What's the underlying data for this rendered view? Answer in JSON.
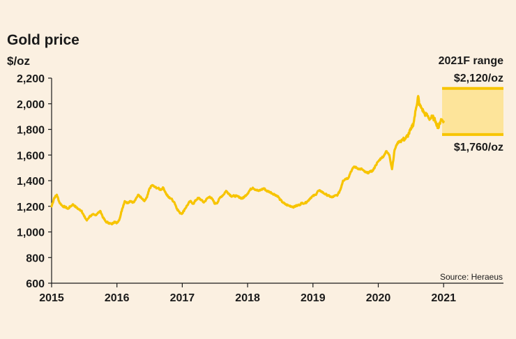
{
  "chart_data": {
    "type": "line",
    "title": "Gold price",
    "ylabel": "$/oz",
    "xlabel": "",
    "ylim": [
      600,
      2200
    ],
    "xlim": [
      2015,
      2022
    ],
    "y_ticks": [
      "600",
      "800",
      "1,000",
      "1,200",
      "1,400",
      "1,600",
      "1,800",
      "2,000",
      "2,200"
    ],
    "x_ticks": [
      "2015",
      "2016",
      "2017",
      "2018",
      "2019",
      "2020",
      "2021"
    ],
    "grid": false,
    "source": "Source: Heraeus",
    "colors": {
      "line": "#f7c400",
      "range_fill": "#fde49a",
      "range_line": "#f7c400",
      "axis": "#1a1a1a",
      "background": "#fbf0e1"
    },
    "series": [
      {
        "x": [
          2015.0,
          2015.04,
          2015.08,
          2015.12,
          2015.17,
          2015.21,
          2015.25,
          2015.29,
          2015.33,
          2015.38,
          2015.42,
          2015.46,
          2015.5,
          2015.54,
          2015.58,
          2015.63,
          2015.67,
          2015.71,
          2015.75,
          2015.79,
          2015.83,
          2015.88,
          2015.92,
          2015.96,
          2016.0,
          2016.04,
          2016.08,
          2016.12,
          2016.17,
          2016.21,
          2016.25,
          2016.29,
          2016.33,
          2016.38,
          2016.42,
          2016.46,
          2016.5,
          2016.54,
          2016.58,
          2016.63,
          2016.67,
          2016.71,
          2016.75,
          2016.79,
          2016.83,
          2016.88,
          2016.92,
          2016.96,
          2017.0,
          2017.04,
          2017.08,
          2017.12,
          2017.17,
          2017.21,
          2017.25,
          2017.29,
          2017.33,
          2017.38,
          2017.42,
          2017.46,
          2017.5,
          2017.54,
          2017.58,
          2017.63,
          2017.67,
          2017.71,
          2017.75,
          2017.79,
          2017.83,
          2017.88,
          2017.92,
          2017.96,
          2018.0,
          2018.04,
          2018.08,
          2018.12,
          2018.17,
          2018.21,
          2018.25,
          2018.29,
          2018.33,
          2018.38,
          2018.42,
          2018.46,
          2018.5,
          2018.54,
          2018.58,
          2018.63,
          2018.67,
          2018.71,
          2018.75,
          2018.79,
          2018.83,
          2018.88,
          2018.92,
          2018.96,
          2019.0,
          2019.04,
          2019.08,
          2019.12,
          2019.17,
          2019.21,
          2019.25,
          2019.29,
          2019.33,
          2019.38,
          2019.42,
          2019.46,
          2019.5,
          2019.54,
          2019.58,
          2019.63,
          2019.67,
          2019.71,
          2019.75,
          2019.79,
          2019.83,
          2019.88,
          2019.92,
          2019.96,
          2020.0,
          2020.04,
          2020.08,
          2020.12,
          2020.17,
          2020.21,
          2020.25,
          2020.29,
          2020.33,
          2020.38,
          2020.42,
          2020.46,
          2020.5,
          2020.54,
          2020.58,
          2020.61,
          2020.63,
          2020.67,
          2020.71,
          2020.75,
          2020.79,
          2020.83,
          2020.88,
          2020.92,
          2020.96,
          2021.0
        ],
        "y": [
          1200,
          1265,
          1290,
          1230,
          1200,
          1195,
          1180,
          1200,
          1215,
          1190,
          1175,
          1165,
          1120,
          1090,
          1120,
          1135,
          1130,
          1150,
          1160,
          1110,
          1080,
          1070,
          1060,
          1080,
          1070,
          1100,
          1180,
          1240,
          1225,
          1240,
          1230,
          1260,
          1290,
          1260,
          1240,
          1270,
          1340,
          1365,
          1350,
          1340,
          1330,
          1345,
          1300,
          1270,
          1260,
          1230,
          1180,
          1150,
          1145,
          1180,
          1210,
          1240,
          1220,
          1250,
          1265,
          1250,
          1230,
          1260,
          1275,
          1255,
          1220,
          1230,
          1270,
          1290,
          1320,
          1300,
          1280,
          1280,
          1280,
          1270,
          1260,
          1280,
          1300,
          1330,
          1345,
          1330,
          1320,
          1330,
          1340,
          1320,
          1315,
          1300,
          1290,
          1280,
          1250,
          1230,
          1215,
          1205,
          1200,
          1195,
          1205,
          1210,
          1225,
          1225,
          1240,
          1265,
          1280,
          1290,
          1320,
          1320,
          1300,
          1290,
          1280,
          1270,
          1280,
          1290,
          1330,
          1400,
          1415,
          1420,
          1470,
          1510,
          1500,
          1490,
          1490,
          1470,
          1460,
          1470,
          1480,
          1520,
          1550,
          1575,
          1590,
          1630,
          1600,
          1490,
          1640,
          1690,
          1710,
          1720,
          1730,
          1760,
          1800,
          1850,
          1970,
          2060,
          1990,
          1960,
          1920,
          1910,
          1880,
          1900,
          1860,
          1810,
          1880,
          1860
        ]
      }
    ],
    "forecast": {
      "label": "2021F range",
      "high": 2120,
      "low": 1760,
      "high_label": "$2,120/oz",
      "low_label": "$1,760/oz"
    }
  }
}
